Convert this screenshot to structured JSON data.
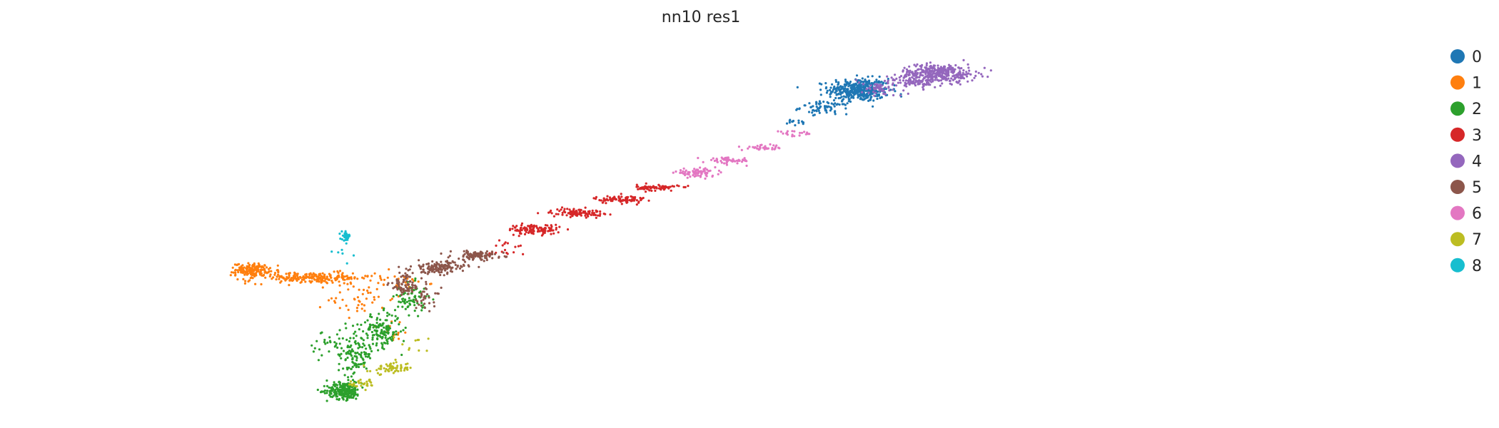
{
  "chart_data": {
    "type": "scatter",
    "title": "nn10 res1",
    "xlabel": "",
    "ylabel": "",
    "axes_visible": false,
    "grid": false,
    "legend_position": "right",
    "xlim": [
      0,
      100
    ],
    "ylim": [
      0,
      100
    ],
    "series": [
      {
        "name": "0",
        "color": "#1f77b4",
        "regions": [
          {
            "cx": 66.1,
            "cy": 90.1,
            "rx": 2.9,
            "ry": 3.0,
            "n": 420
          },
          {
            "cx": 62.5,
            "cy": 85.0,
            "rx": 2.3,
            "ry": 1.6,
            "n": 70
          },
          {
            "cx": 59.6,
            "cy": 80.8,
            "rx": 1.3,
            "ry": 0.9,
            "n": 14
          }
        ]
      },
      {
        "name": "1",
        "color": "#ff7f0e",
        "regions": [
          {
            "cx": 2.4,
            "cy": 38.4,
            "rx": 1.6,
            "ry": 1.6,
            "n": 160
          },
          {
            "cx": 8.5,
            "cy": 36.0,
            "rx": 6.0,
            "ry": 1.5,
            "n": 220
          },
          {
            "cx": 13.8,
            "cy": 30.0,
            "rx": 3.2,
            "ry": 4.5,
            "n": 45
          },
          {
            "cx": 17.0,
            "cy": 21.0,
            "rx": 2.0,
            "ry": 3.0,
            "n": 12
          },
          {
            "cx": 18.0,
            "cy": 34.5,
            "rx": 2.5,
            "ry": 2.0,
            "n": 30
          }
        ]
      },
      {
        "name": "2",
        "color": "#2ca02c",
        "regions": [
          {
            "cx": 12.0,
            "cy": 3.5,
            "rx": 1.6,
            "ry": 2.2,
            "n": 240
          },
          {
            "cx": 13.2,
            "cy": 14.0,
            "rx": 1.7,
            "ry": 6.5,
            "n": 130
          },
          {
            "cx": 16.0,
            "cy": 21.0,
            "rx": 1.8,
            "ry": 4.5,
            "n": 140
          },
          {
            "cx": 19.0,
            "cy": 30.0,
            "rx": 1.5,
            "ry": 4.0,
            "n": 70
          },
          {
            "cx": 10.5,
            "cy": 16.0,
            "rx": 2.0,
            "ry": 5.0,
            "n": 25
          }
        ]
      },
      {
        "name": "3",
        "color": "#d62728",
        "regions": [
          {
            "cx": 32.0,
            "cy": 50.0,
            "rx": 2.5,
            "ry": 1.3,
            "n": 110
          },
          {
            "cx": 36.5,
            "cy": 54.8,
            "rx": 2.5,
            "ry": 1.1,
            "n": 100
          },
          {
            "cx": 41.0,
            "cy": 58.6,
            "rx": 2.5,
            "ry": 1.0,
            "n": 90
          },
          {
            "cx": 45.0,
            "cy": 62.0,
            "rx": 2.0,
            "ry": 0.8,
            "n": 70
          },
          {
            "cx": 29.0,
            "cy": 44.5,
            "rx": 2.0,
            "ry": 2.5,
            "n": 20
          }
        ]
      },
      {
        "name": "4",
        "color": "#9467bd",
        "regions": [
          {
            "cx": 74.5,
            "cy": 95.0,
            "rx": 3.6,
            "ry": 2.3,
            "n": 330
          },
          {
            "cx": 72.0,
            "cy": 92.5,
            "rx": 3.5,
            "ry": 1.8,
            "n": 90
          },
          {
            "cx": 68.5,
            "cy": 90.5,
            "rx": 2.0,
            "ry": 2.0,
            "n": 50
          }
        ]
      },
      {
        "name": "5",
        "color": "#8c564b",
        "regions": [
          {
            "cx": 22.0,
            "cy": 39.0,
            "rx": 2.5,
            "ry": 1.6,
            "n": 140
          },
          {
            "cx": 26.0,
            "cy": 42.5,
            "rx": 2.5,
            "ry": 1.2,
            "n": 100
          },
          {
            "cx": 18.5,
            "cy": 34.0,
            "rx": 1.6,
            "ry": 3.0,
            "n": 80
          },
          {
            "cx": 20.5,
            "cy": 30.0,
            "rx": 1.5,
            "ry": 3.0,
            "n": 30
          }
        ]
      },
      {
        "name": "6",
        "color": "#e377c2",
        "regions": [
          {
            "cx": 49.0,
            "cy": 66.3,
            "rx": 2.0,
            "ry": 1.0,
            "n": 80
          },
          {
            "cx": 52.5,
            "cy": 69.8,
            "rx": 2.0,
            "ry": 0.8,
            "n": 60
          },
          {
            "cx": 56.0,
            "cy": 73.5,
            "rx": 2.0,
            "ry": 0.7,
            "n": 35
          },
          {
            "cx": 59.5,
            "cy": 77.5,
            "rx": 2.0,
            "ry": 0.7,
            "n": 20
          }
        ]
      },
      {
        "name": "7",
        "color": "#bcbd22",
        "regions": [
          {
            "cx": 17.0,
            "cy": 10.0,
            "rx": 2.0,
            "ry": 1.5,
            "n": 60
          },
          {
            "cx": 14.0,
            "cy": 5.5,
            "rx": 1.3,
            "ry": 1.2,
            "n": 30
          },
          {
            "cx": 20.0,
            "cy": 17.0,
            "rx": 2.0,
            "ry": 3.0,
            "n": 10
          }
        ]
      },
      {
        "name": "8",
        "color": "#17becf",
        "regions": [
          {
            "cx": 12.2,
            "cy": 48.0,
            "rx": 0.4,
            "ry": 1.1,
            "n": 35
          },
          {
            "cx": 12.0,
            "cy": 43.0,
            "rx": 1.5,
            "ry": 2.5,
            "n": 6
          }
        ]
      }
    ]
  }
}
